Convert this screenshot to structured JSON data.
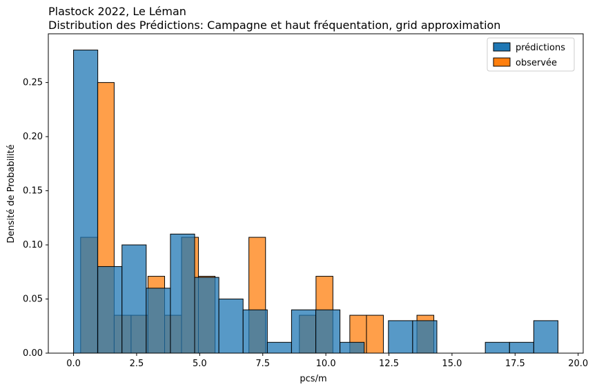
{
  "chart_data": {
    "type": "bar",
    "title": "Plastock 2022, Le Léman",
    "subtitle": "Distribution des Prédictions: Campagne et haut fréquentation, grid approximation",
    "xlabel": "pcs/m",
    "ylabel": "Densité de Probabilité",
    "xlim": [
      -1,
      20.2
    ],
    "ylim": [
      0,
      0.295
    ],
    "x_ticks": [
      0.0,
      2.5,
      5.0,
      7.5,
      10.0,
      12.5,
      15.0,
      17.5,
      20.0
    ],
    "x_tick_labels": [
      "0.0",
      "2.5",
      "5.0",
      "7.5",
      "10.0",
      "12.5",
      "15.0",
      "17.5",
      "20.0"
    ],
    "y_ticks": [
      0.0,
      0.05,
      0.1,
      0.15,
      0.2,
      0.25
    ],
    "y_tick_labels": [
      "0.00",
      "0.05",
      "0.10",
      "0.15",
      "0.20",
      "0.25"
    ],
    "legend_position": "top-right",
    "series": [
      {
        "name": "observée",
        "color": "#ff7f0e",
        "bins": [
          [
            0.28,
            0.95,
            0.107
          ],
          [
            0.95,
            1.61,
            0.25
          ],
          [
            1.61,
            2.28,
            0.035
          ],
          [
            2.28,
            2.95,
            0.035
          ],
          [
            2.95,
            3.61,
            0.071
          ],
          [
            3.61,
            4.28,
            0.035
          ],
          [
            4.28,
            4.95,
            0.107
          ],
          [
            4.95,
            5.61,
            0.071
          ],
          [
            5.61,
            6.28,
            0.0
          ],
          [
            6.28,
            6.95,
            0.0
          ],
          [
            6.95,
            7.61,
            0.107
          ],
          [
            7.61,
            8.28,
            0.0
          ],
          [
            8.28,
            8.95,
            0.0
          ],
          [
            8.95,
            9.61,
            0.035
          ],
          [
            9.61,
            10.28,
            0.071
          ],
          [
            10.28,
            10.95,
            0.0
          ],
          [
            10.95,
            11.61,
            0.035
          ],
          [
            11.61,
            12.28,
            0.035
          ],
          [
            12.28,
            12.95,
            0.0
          ],
          [
            12.95,
            13.61,
            0.0
          ],
          [
            13.61,
            14.28,
            0.035
          ]
        ]
      },
      {
        "name": "prédictions",
        "color": "#1f77b4",
        "bins": [
          [
            0.0,
            0.96,
            0.28
          ],
          [
            0.96,
            1.92,
            0.08
          ],
          [
            1.92,
            2.88,
            0.1
          ],
          [
            2.88,
            3.84,
            0.06
          ],
          [
            3.84,
            4.8,
            0.11
          ],
          [
            4.8,
            5.76,
            0.07
          ],
          [
            5.76,
            6.72,
            0.05
          ],
          [
            6.72,
            7.68,
            0.04
          ],
          [
            7.68,
            8.64,
            0.01
          ],
          [
            8.64,
            9.6,
            0.04
          ],
          [
            9.6,
            10.56,
            0.04
          ],
          [
            10.56,
            11.52,
            0.01
          ],
          [
            11.52,
            12.48,
            0.0
          ],
          [
            12.48,
            13.44,
            0.03
          ],
          [
            13.44,
            14.4,
            0.03
          ],
          [
            14.4,
            15.36,
            0.0
          ],
          [
            15.36,
            16.32,
            0.0
          ],
          [
            16.32,
            17.28,
            0.01
          ],
          [
            17.28,
            18.24,
            0.01
          ],
          [
            18.24,
            19.2,
            0.03
          ]
        ]
      }
    ]
  }
}
